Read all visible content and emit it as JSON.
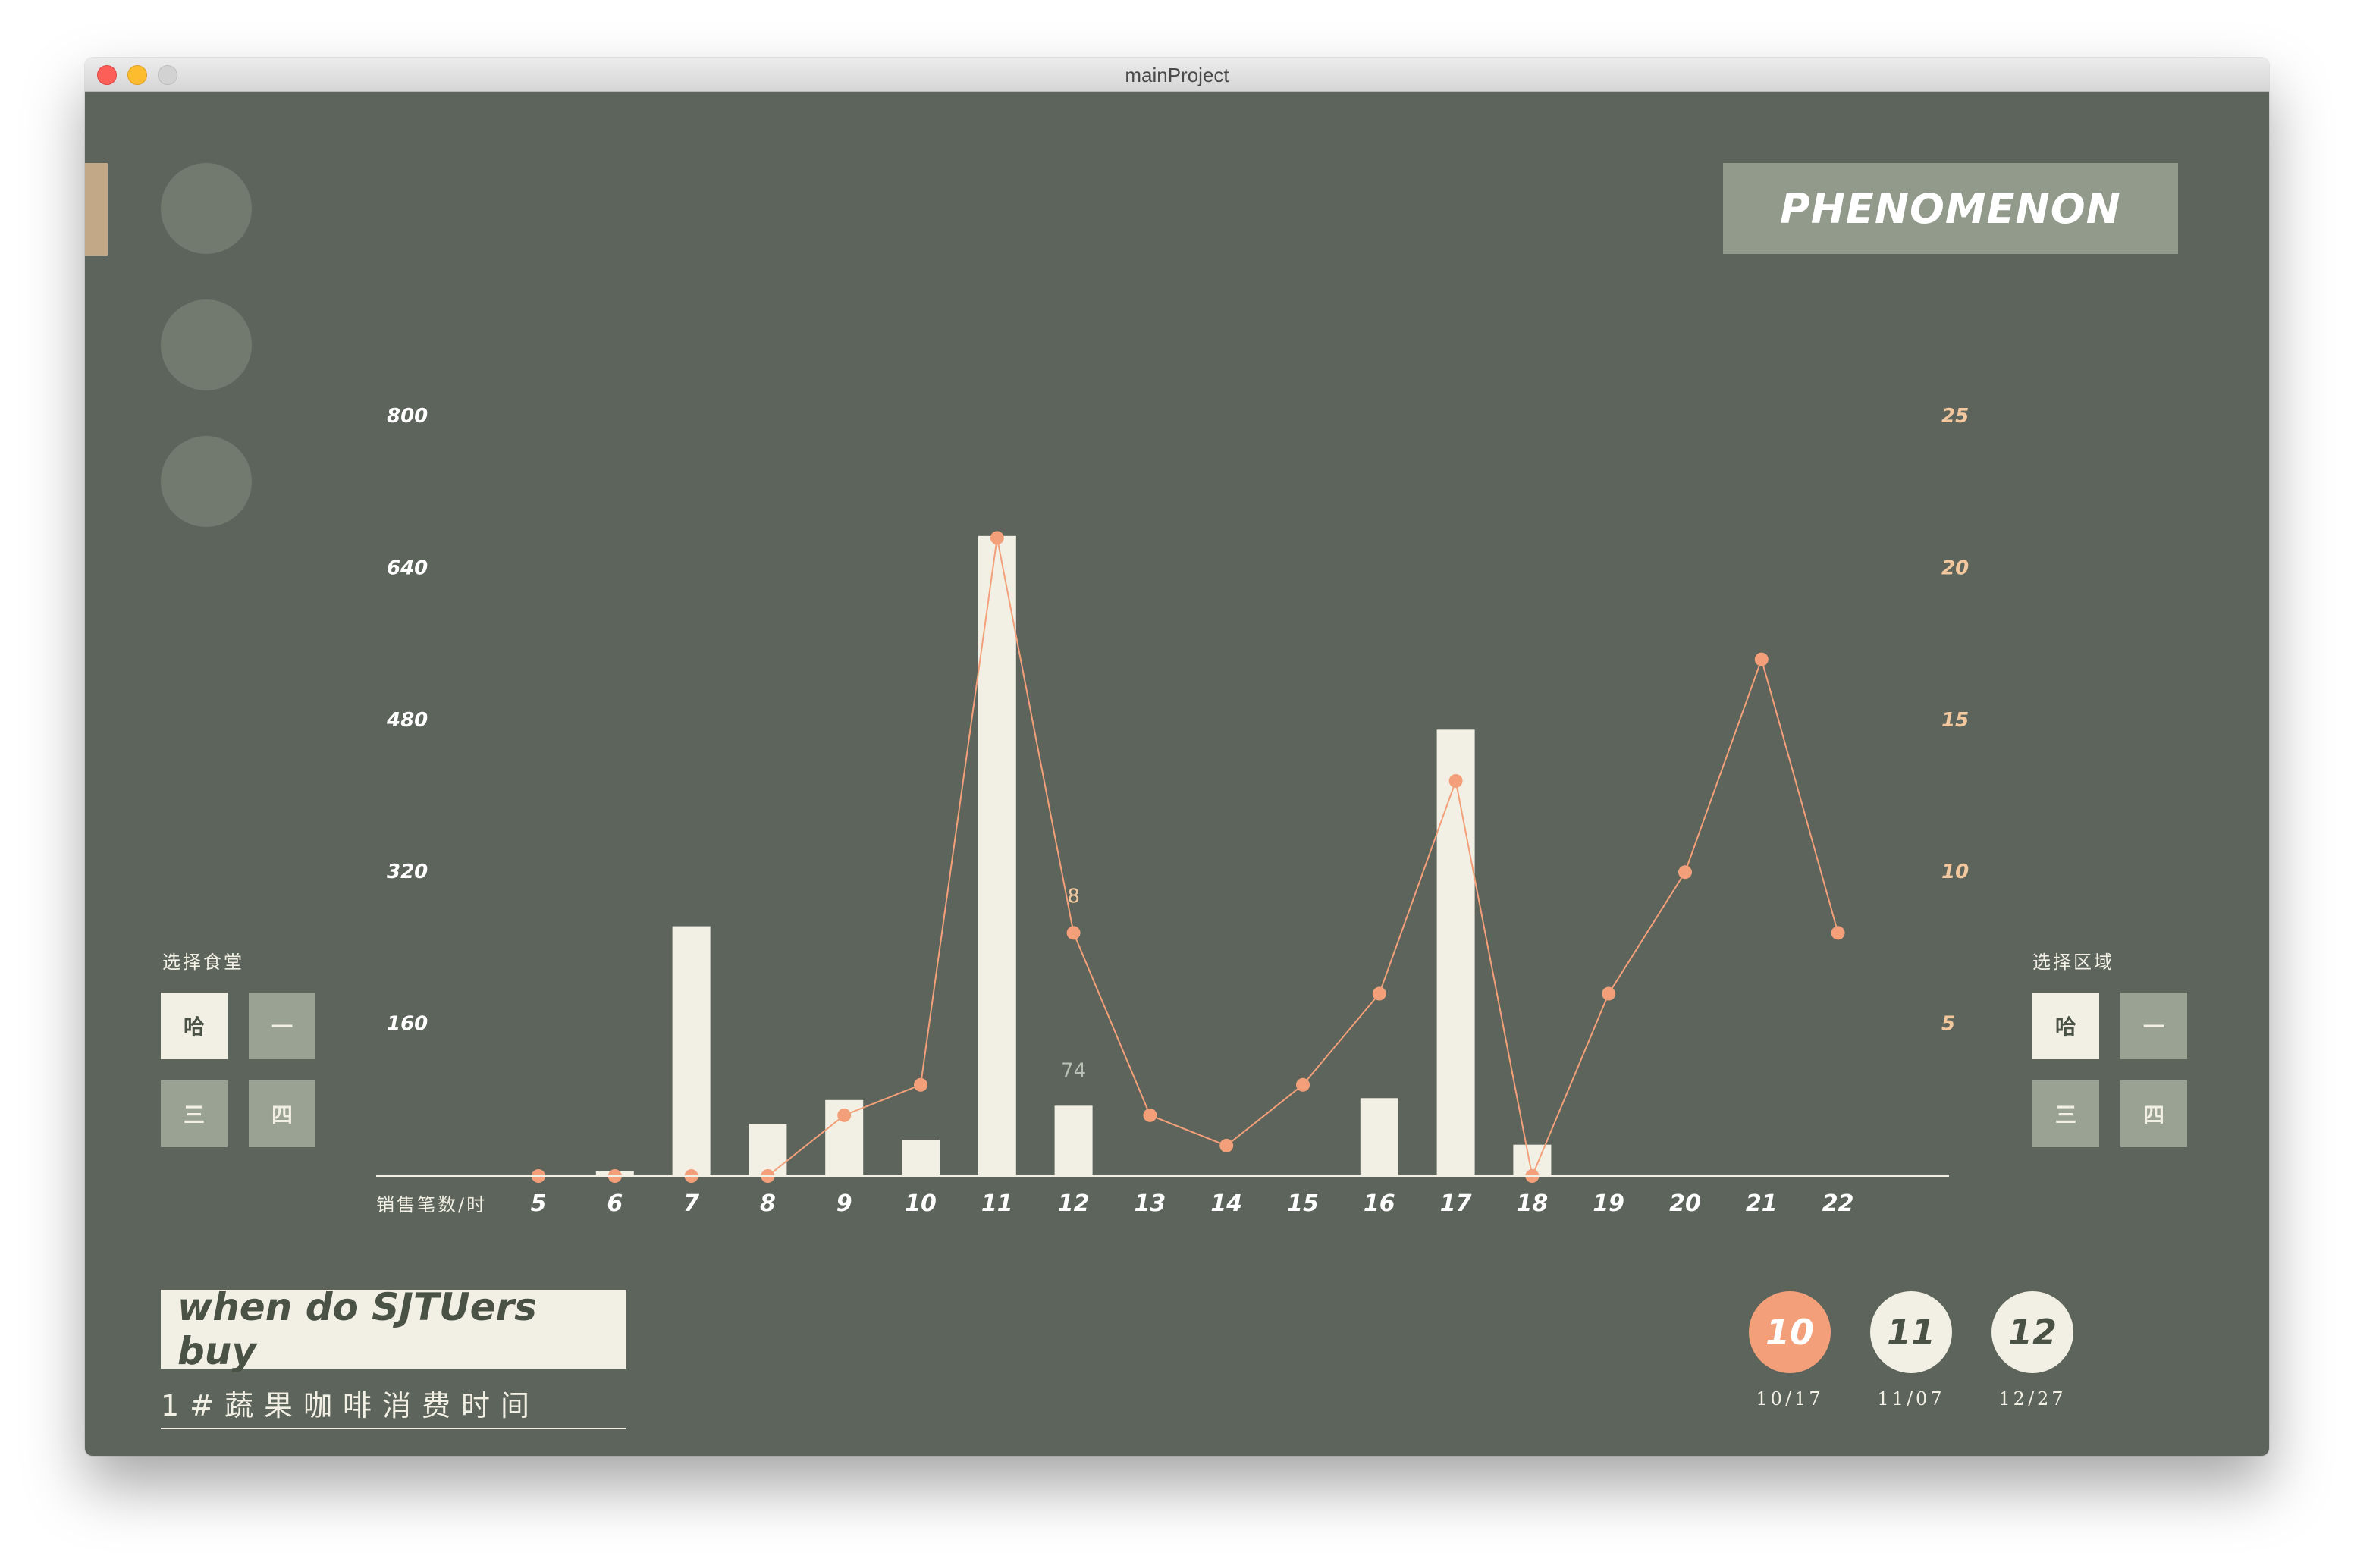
{
  "window": {
    "title": "mainProject",
    "controls": [
      "close",
      "minimize",
      "maximize"
    ]
  },
  "nav": {
    "circles": [
      {
        "icon": "circle-icon"
      },
      {
        "icon": "circle-icon"
      },
      {
        "icon": "circle-icon"
      }
    ]
  },
  "header": {
    "badge": "PHENOMENON"
  },
  "left_panel": {
    "title": "选择食堂",
    "buttons": [
      {
        "label": "哈",
        "active": true
      },
      {
        "label": "一",
        "active": false
      },
      {
        "label": "三",
        "active": false
      },
      {
        "label": "四",
        "active": false
      }
    ]
  },
  "right_panel": {
    "title": "选择区域",
    "buttons": [
      {
        "label": "哈",
        "active": true
      },
      {
        "label": "一",
        "active": false
      },
      {
        "label": "三",
        "active": false
      },
      {
        "label": "四",
        "active": false
      }
    ]
  },
  "footer": {
    "headline": "when do SJTUers buy",
    "subtitle": "1#蔬果咖啡消费时间"
  },
  "dates": [
    {
      "number": "10",
      "label": "10/17",
      "active": true
    },
    {
      "number": "11",
      "label": "11/07",
      "active": false
    },
    {
      "number": "12",
      "label": "12/27",
      "active": false
    }
  ],
  "colors": {
    "background": "#5d645b",
    "bar": "#f2f0e4",
    "line": "#f3a07a",
    "badge": "#929a8b",
    "inactive_button": "#9aa293"
  },
  "chart_data": {
    "type": "bar",
    "xlabel": "销售笔数/时",
    "categories": [
      "5",
      "6",
      "7",
      "8",
      "9",
      "10",
      "11",
      "12",
      "13",
      "14",
      "15",
      "16",
      "17",
      "18",
      "19",
      "20",
      "21",
      "22"
    ],
    "ylim_left": [
      0,
      800
    ],
    "yticks_left": [
      "160",
      "320",
      "480",
      "640",
      "800"
    ],
    "ylim_right": [
      0,
      25
    ],
    "yticks_right": [
      "5",
      "10",
      "15",
      "20",
      "25"
    ],
    "series": [
      {
        "axis": "left",
        "type": "bar",
        "values": [
          0,
          5,
          263,
          55,
          80,
          38,
          674,
          74,
          0,
          0,
          0,
          82,
          470,
          33,
          0,
          0,
          0,
          0
        ]
      },
      {
        "axis": "right",
        "type": "line",
        "values": [
          0,
          0,
          0,
          0,
          2,
          3,
          21,
          8,
          2,
          1,
          3,
          6,
          13,
          0,
          6,
          10,
          17,
          8
        ]
      }
    ],
    "annotations": [
      {
        "category": "12",
        "series": 0,
        "text": "74"
      },
      {
        "category": "12",
        "series": 1,
        "text": "8"
      }
    ],
    "grid": false,
    "legend": "none"
  }
}
